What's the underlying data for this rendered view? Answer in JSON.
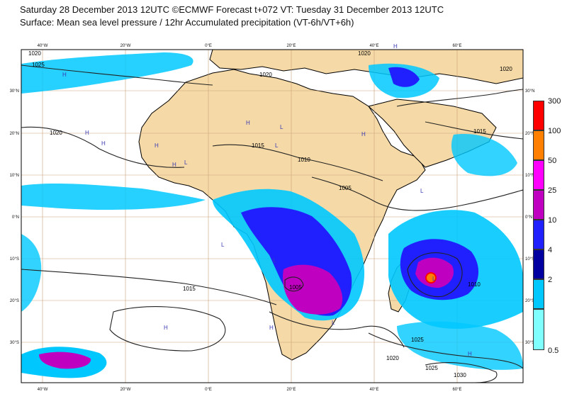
{
  "header": {
    "line1": "Saturday 28 December 2013 12UTC ©ECMWF Forecast t+072 VT: Tuesday 31 December 2013 12UTC",
    "line2": "Surface: Mean sea level pressure / 12hr Accumulated precipitation (VT-6h/VT+6h)"
  },
  "map": {
    "lon_labels": [
      "40°W",
      "20°W",
      "0°E",
      "20°E",
      "40°E",
      "60°E"
    ],
    "lat_labels": [
      "30°N",
      "20°N",
      "10°N",
      "0°N",
      "10°S",
      "20°S",
      "30°S"
    ],
    "isobar_labels": [
      "1020",
      "1025",
      "1020",
      "1015",
      "1010",
      "1005",
      "1015",
      "1005",
      "1010",
      "1015",
      "1020",
      "1025",
      "1030",
      "1020",
      "1020",
      "1020",
      "1025"
    ],
    "highs": [
      "H",
      "H",
      "H",
      "H",
      "H",
      "H",
      "H",
      "H",
      "H",
      "H",
      "H"
    ],
    "lows": [
      "L",
      "L",
      "L",
      "L",
      "L",
      "L",
      "L",
      "L"
    ]
  },
  "colorbar": {
    "labels": [
      "300",
      "100",
      "50",
      "25",
      "10",
      "4",
      "2",
      "0.5"
    ],
    "colors": [
      "#ff0000",
      "#ff8000",
      "#ff00ff",
      "#c000c0",
      "#2020ff",
      "#0000a0",
      "#00c8ff",
      "#80ffff"
    ]
  }
}
